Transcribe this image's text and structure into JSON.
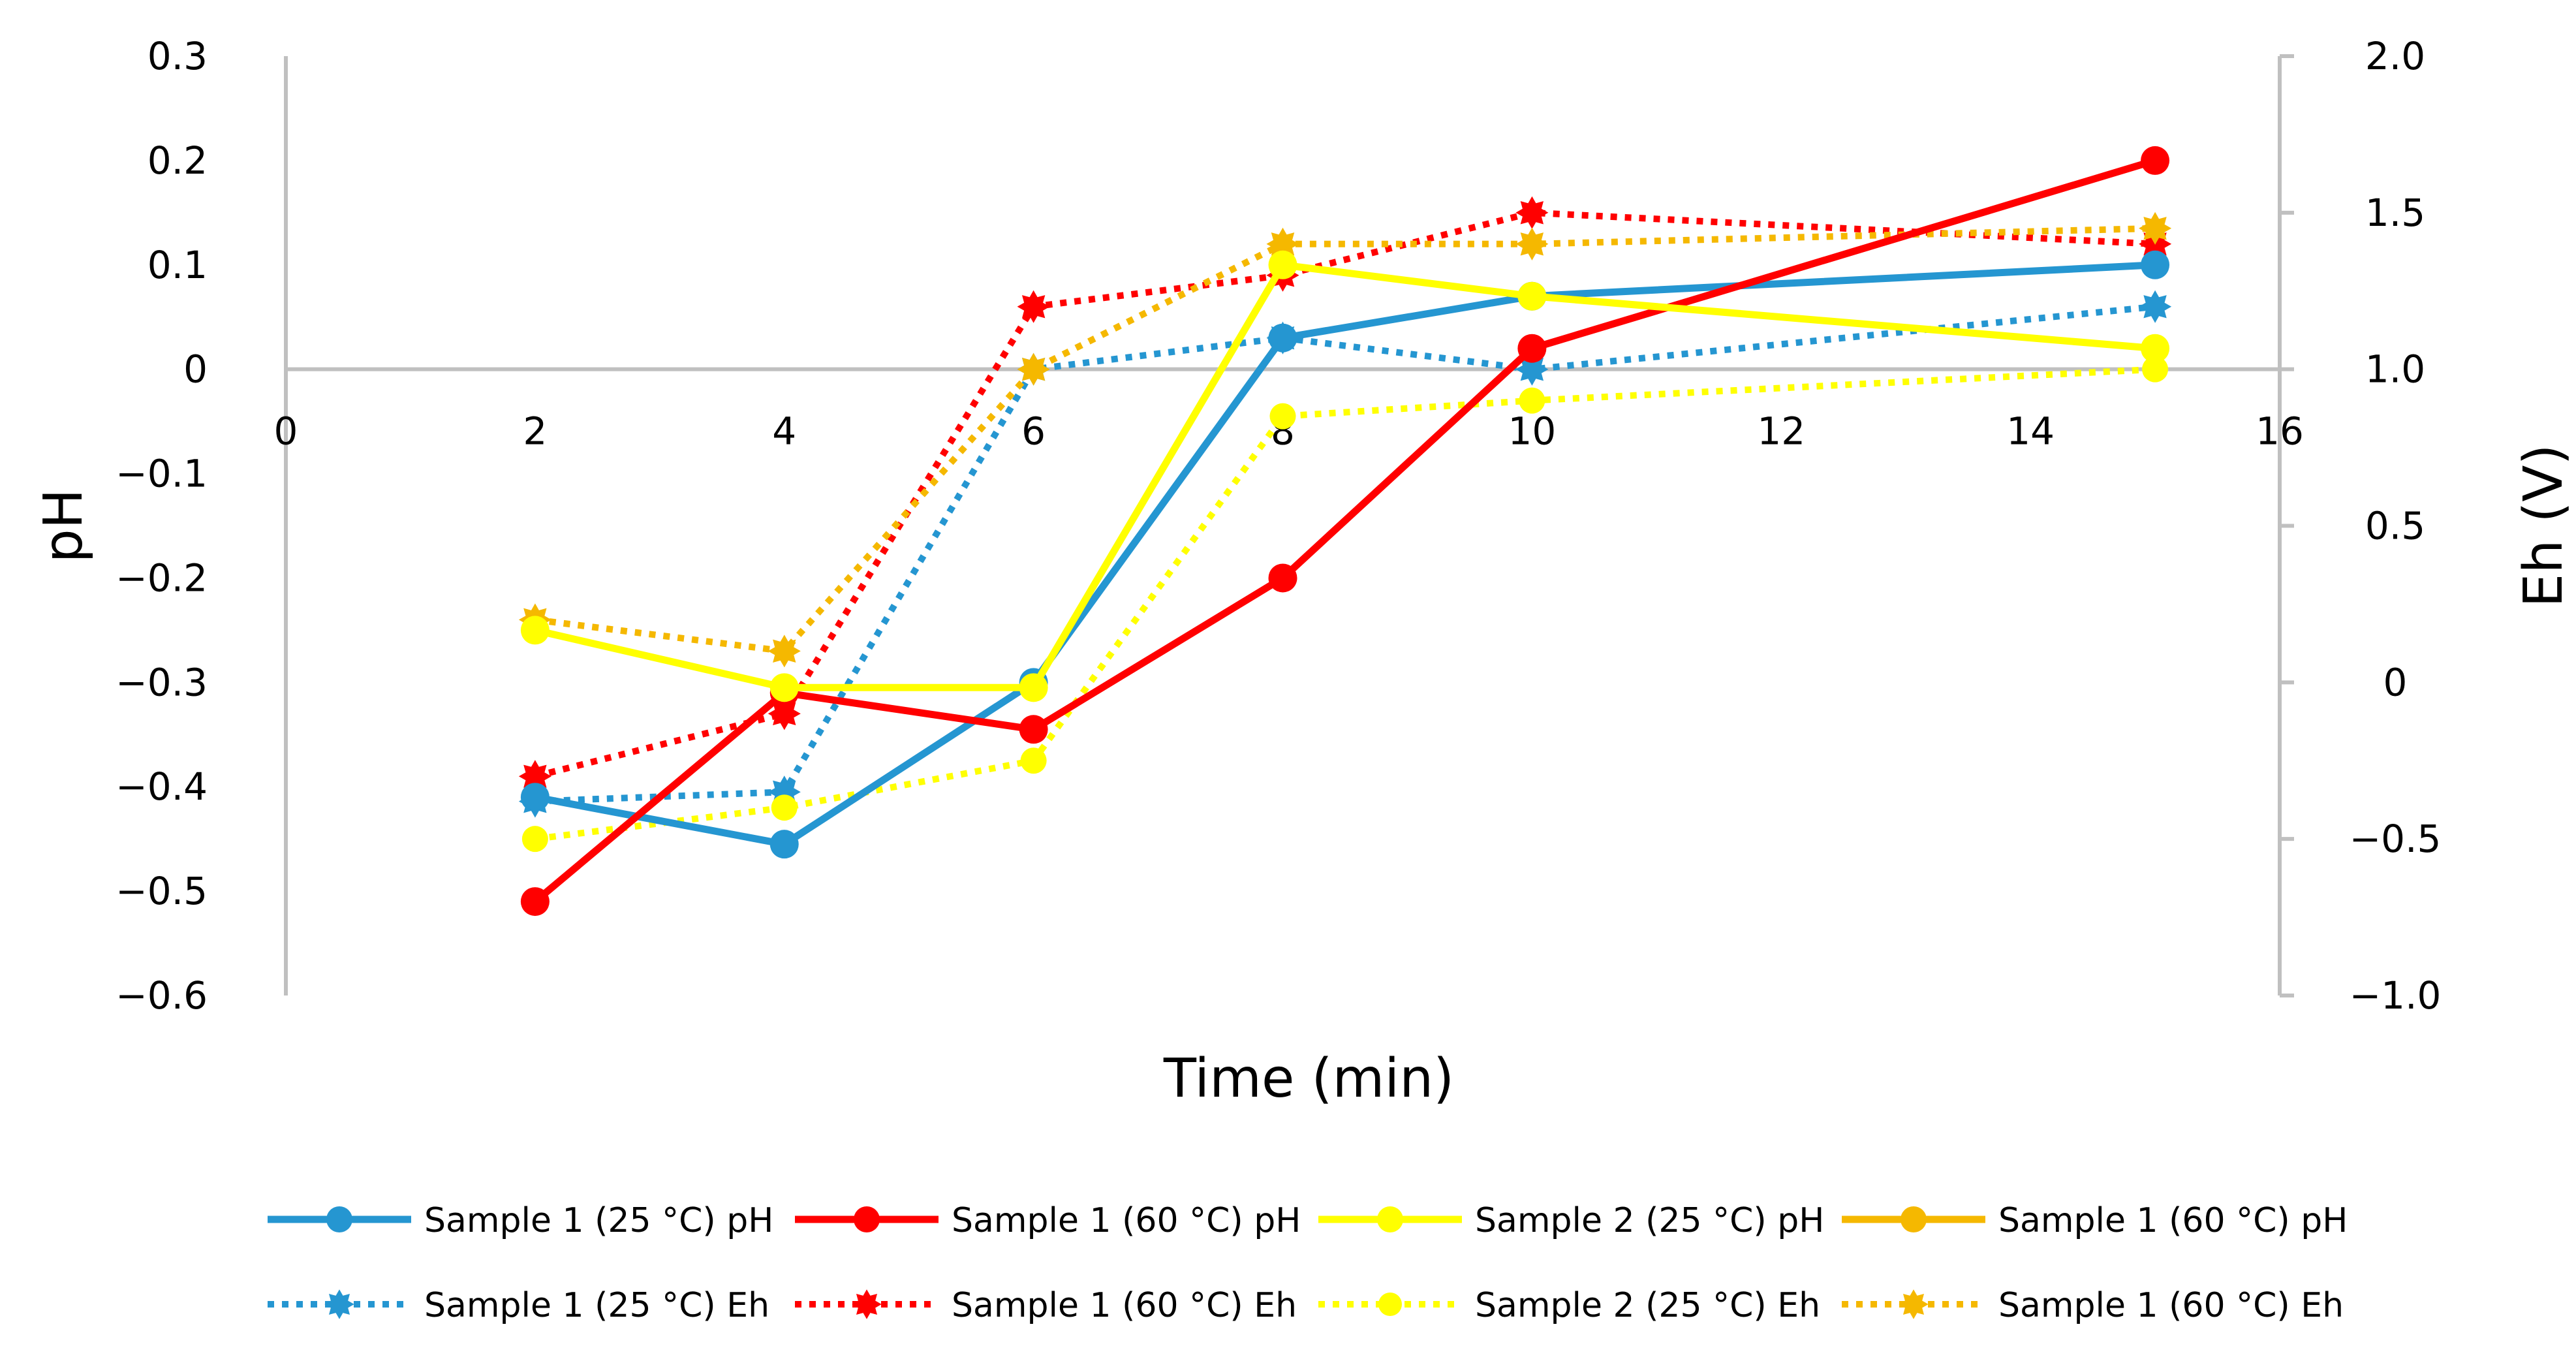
{
  "chart_data": {
    "type": "line",
    "title": "",
    "xlabel": "Time (min)",
    "ylabel": "pH",
    "y2label": "Eh (V)",
    "xlim": [
      0,
      16
    ],
    "ylim": [
      -0.6,
      0.3
    ],
    "y2lim": [
      -1.0,
      2.0
    ],
    "grid": false,
    "legend_position": "bottom",
    "x_ticks": [
      0,
      2,
      4,
      6,
      8,
      10,
      12,
      14,
      16
    ],
    "x_tick_labels": [
      "0",
      "2",
      "4",
      "6",
      "8",
      "10",
      "12",
      "14",
      "16"
    ],
    "y_ticks": [
      0.3,
      0.2,
      0.1,
      0,
      -0.1,
      -0.2,
      -0.3,
      -0.4,
      -0.5,
      -0.6
    ],
    "y_tick_labels": [
      "0.3",
      "0.2",
      "0.1",
      "0",
      "−0.1",
      "−0.2",
      "−0.3",
      "−0.4",
      "−0.5",
      "−0.6"
    ],
    "y2_ticks": [
      2.0,
      1.5,
      1.0,
      0.5,
      0,
      -0.5,
      -1.0
    ],
    "y2_tick_labels": [
      "2.0",
      "1.5",
      "1.0",
      "0.5",
      "0",
      "−0.5",
      "−1.0"
    ],
    "series": [
      {
        "name": "Sample 1 (25 °C) pH",
        "axis": "left",
        "style": "solid",
        "marker": "circle",
        "color": "#2596d1",
        "x": [
          2,
          4,
          6,
          8,
          10,
          15
        ],
        "values": [
          -0.41,
          -0.455,
          -0.3,
          0.03,
          0.07,
          0.1
        ]
      },
      {
        "name": "Sample 1 (60 °C) pH",
        "axis": "left",
        "style": "solid",
        "marker": "circle",
        "color": "#ff0000",
        "x": [
          2,
          4,
          6,
          8,
          10,
          15
        ],
        "values": [
          -0.51,
          -0.31,
          -0.345,
          -0.2,
          0.02,
          0.2
        ]
      },
      {
        "name": "Sample 2 (25 °C) pH",
        "axis": "left",
        "style": "solid",
        "marker": "circle",
        "color": "#ffff00",
        "x": [
          2,
          4,
          6,
          8,
          10,
          15
        ],
        "values": [
          -0.25,
          -0.305,
          -0.305,
          0.1,
          0.07,
          0.02
        ]
      },
      {
        "name": "Sample 1 (60 °C) pH",
        "axis": "left",
        "style": "solid",
        "marker": "circle",
        "color": "#f5b800",
        "x": [],
        "values": []
      },
      {
        "name": "Sample 1 (25 °C) Eh",
        "axis": "right",
        "style": "dotted",
        "marker": "star",
        "color": "#2596d1",
        "x": [
          2,
          4,
          6,
          8,
          10,
          15
        ],
        "values": [
          -0.38,
          -0.35,
          1.0,
          1.1,
          1.0,
          1.2
        ]
      },
      {
        "name": "Sample 1 (60 °C) Eh",
        "axis": "right",
        "style": "dotted",
        "marker": "star",
        "color": "#ff0000",
        "x": [
          2,
          4,
          6,
          8,
          10,
          15
        ],
        "values": [
          -0.3,
          -0.1,
          1.2,
          1.3,
          1.5,
          1.4
        ]
      },
      {
        "name": "Sample 2 (25 °C) Eh",
        "axis": "right",
        "style": "dotted",
        "marker": "circle",
        "color": "#ffff00",
        "x": [
          2,
          4,
          6,
          8,
          10,
          15
        ],
        "values": [
          -0.5,
          -0.4,
          -0.25,
          0.85,
          0.9,
          1.0
        ]
      },
      {
        "name": "Sample 1 (60 °C) Eh",
        "axis": "right",
        "style": "dotted",
        "marker": "star",
        "color": "#f5b800",
        "x": [
          2,
          4,
          6,
          8,
          10,
          15
        ],
        "values": [
          0.2,
          0.1,
          1.0,
          1.4,
          1.4,
          1.45
        ]
      }
    ]
  }
}
